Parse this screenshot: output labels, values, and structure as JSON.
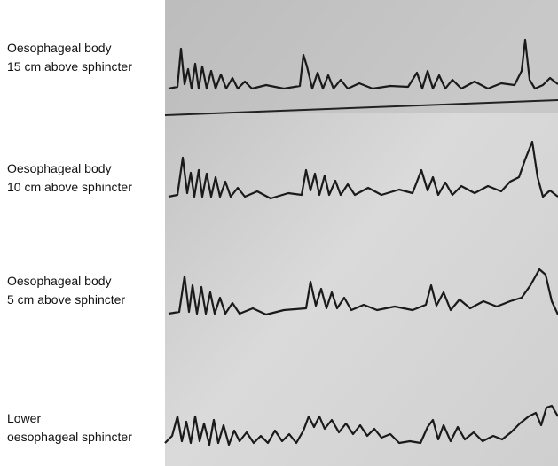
{
  "labels": [
    {
      "line1": "Oesophageal body",
      "line2": "15 cm above sphincter"
    },
    {
      "line1": "Oesophageal body",
      "line2": "10 cm above sphincter"
    },
    {
      "line1": "Oesophageal body",
      "line2": "5 cm above sphincter"
    },
    {
      "line1": "Lower",
      "line2": "oesophageal sphincter"
    }
  ]
}
